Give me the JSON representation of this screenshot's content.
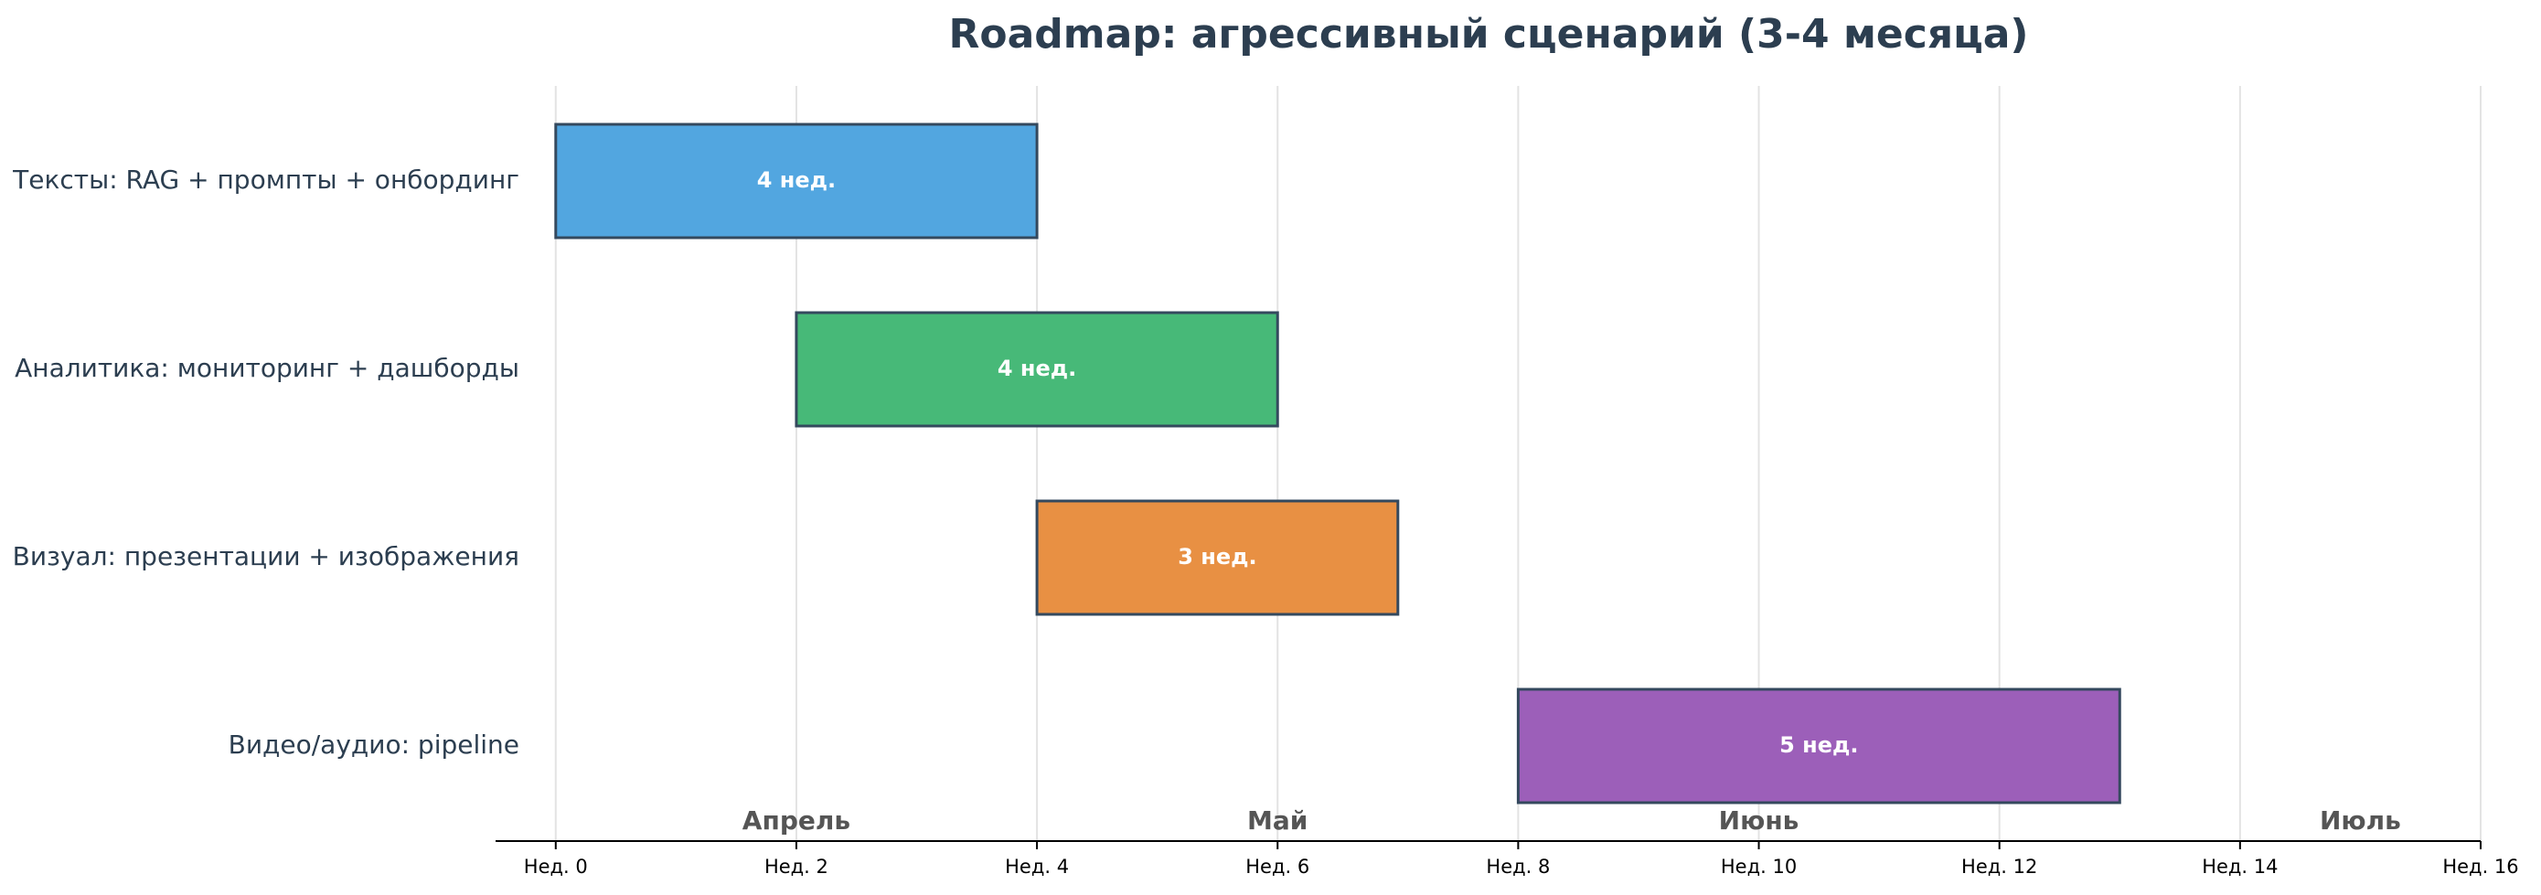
{
  "chart_data": {
    "type": "gantt",
    "title": "Roadmap: агрессивный сценарий (3-4 месяца)",
    "categories": [
      "Тексты: RAG + промпты + онбординг",
      "Аналитика: мониторинг + дашборды",
      "Визуал: презентации + изображения",
      "Видео/аудио: pipeline"
    ],
    "starts": [
      0,
      2,
      4,
      8
    ],
    "values": [
      4,
      4,
      3,
      5
    ],
    "value_labels": [
      "4 нед.",
      "4 нед.",
      "3 нед.",
      "5 нед."
    ],
    "colors": [
      "#52a6e0",
      "#47b978",
      "#e89043",
      "#9c5fb9"
    ],
    "xlim": [
      -0.5,
      16
    ],
    "xticks": [
      {
        "value": 0,
        "label": "Нед. 0"
      },
      {
        "value": 2,
        "label": "Нед. 2"
      },
      {
        "value": 4,
        "label": "Нед. 4"
      },
      {
        "value": 6,
        "label": "Нед. 6"
      },
      {
        "value": 8,
        "label": "Нед. 8"
      },
      {
        "value": 10,
        "label": "Нед. 10"
      },
      {
        "value": 12,
        "label": "Нед. 12"
      },
      {
        "value": 14,
        "label": "Нед. 14"
      },
      {
        "value": 16,
        "label": "Нед. 16"
      }
    ],
    "annotations": [
      {
        "text": "Апрель",
        "x": 2
      },
      {
        "text": "Май",
        "x": 6
      },
      {
        "text": "Июнь",
        "x": 10
      },
      {
        "text": "Июль",
        "x": 15
      }
    ],
    "grid": true
  }
}
